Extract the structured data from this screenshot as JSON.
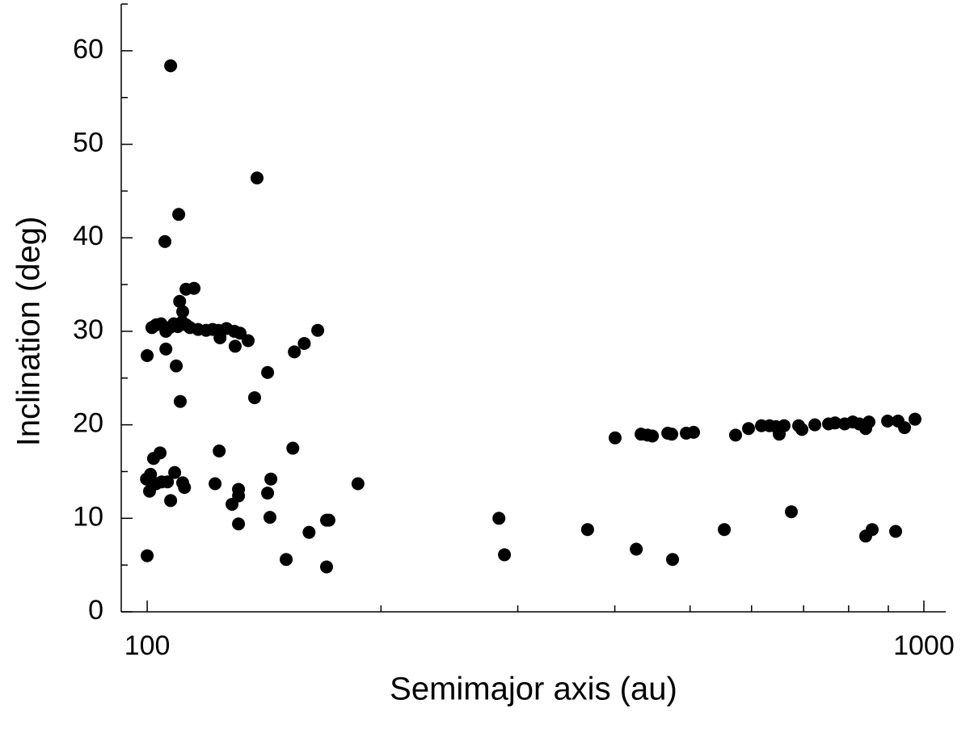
{
  "chart_data": {
    "type": "scatter",
    "x_label": "Semimajor axis (au)",
    "y_label": "Inclination (deg)",
    "x_scale": "log",
    "color": "#000000",
    "xlim": [
      92.6,
      1067
    ],
    "ylim": [
      0,
      65
    ],
    "xticks": [
      100,
      1000
    ],
    "xminorticks": [
      200,
      300,
      400,
      500,
      600,
      700,
      800,
      900
    ],
    "yticks": [
      0,
      10,
      20,
      30,
      40,
      50,
      60
    ],
    "yminorticks": [
      5,
      15,
      25,
      35,
      45,
      55,
      65
    ],
    "x": [
      100,
      100,
      99.8,
      101,
      100.7,
      101.9,
      103.9,
      102.7,
      104.4,
      106.2,
      107.2,
      108.5,
      111.1,
      111.7,
      101.4,
      102.7,
      104.2,
      105.7,
      106.9,
      108.2,
      109.5,
      110.9,
      112.2,
      113.5,
      116.3,
      119.1,
      121.4,
      123.5,
      126.5,
      129.5,
      131.7,
      134.9,
      105.7,
      105.4,
      107.2,
      109.8,
      109.0,
      110.3,
      110.1,
      111.1,
      112.2,
      114.9,
      124.1,
      129.8,
      138.5,
      137.5,
      142.9,
      154.7,
      159.3,
      165.8,
      123.8,
      122.3,
      131.1,
      131.1,
      128.6,
      131.1,
      144.3,
      142.9,
      143.9,
      154.0,
      151.0,
      161.6,
      170.2,
      170.2,
      171.4,
      186.8,
      283.7,
      288.4,
      369,
      426.3,
      474.7,
      553.4,
      675.1,
      841.6,
      857.9,
      919.7,
      400.4,
      432.4,
      440.8,
      447.2,
      468,
      473.6,
      494.4,
      505.2,
      572.2,
      594.6,
      617.8,
      632.8,
      645.1,
      651.3,
      660.7,
      689.9,
      696.6,
      723.8,
      753.9,
      768.5,
      790.7,
      809.9,
      825.6,
      841.6,
      849.7,
      898,
      926.4,
      944.3,
      974
    ],
    "y": [
      6.0,
      27.4,
      14.2,
      14.7,
      12.9,
      16.4,
      17.0,
      13.7,
      13.9,
      13.9,
      11.9,
      14.9,
      13.8,
      13.3,
      30.4,
      30.7,
      30.8,
      30.0,
      30.4,
      30.8,
      30.5,
      31.0,
      30.7,
      30.4,
      30.2,
      30.1,
      30.2,
      30.1,
      30.3,
      30.0,
      29.8,
      29.0,
      28.1,
      39.6,
      58.4,
      42.5,
      26.3,
      22.5,
      33.2,
      32.1,
      34.5,
      34.6,
      29.3,
      28.4,
      46.4,
      22.9,
      25.6,
      27.8,
      28.7,
      30.1,
      17.2,
      13.7,
      13.1,
      12.4,
      11.5,
      9.4,
      14.2,
      12.7,
      10.1,
      17.5,
      5.6,
      8.5,
      4.8,
      9.8,
      9.8,
      13.7,
      10.0,
      6.1,
      8.8,
      6.7,
      5.6,
      8.8,
      10.7,
      8.1,
      8.8,
      8.6,
      18.6,
      19.0,
      18.9,
      18.8,
      19.1,
      19.0,
      19.1,
      19.2,
      18.9,
      19.6,
      19.9,
      19.9,
      19.8,
      19.0,
      19.9,
      19.9,
      19.5,
      20.0,
      20.1,
      20.2,
      20.1,
      20.3,
      20.1,
      19.6,
      20.3,
      20.4,
      20.4,
      19.7,
      20.6
    ]
  }
}
